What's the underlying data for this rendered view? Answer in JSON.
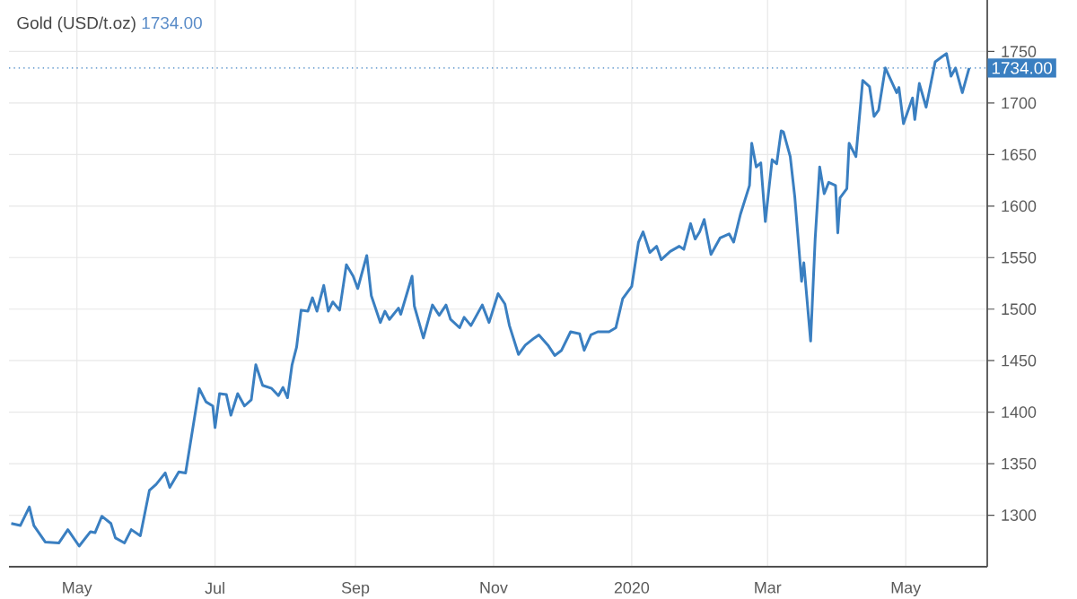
{
  "chart_data": {
    "type": "line",
    "title": "Gold (USD/t.oz)",
    "subtitle": "1734.00",
    "x": [
      "2019-04-02",
      "2019-04-06",
      "2019-04-10",
      "2019-04-12",
      "2019-04-17",
      "2019-04-23",
      "2019-04-27",
      "2019-05-02",
      "2019-05-07",
      "2019-05-09",
      "2019-05-12",
      "2019-05-16",
      "2019-05-18",
      "2019-05-22",
      "2019-05-25",
      "2019-05-29",
      "2019-06-02",
      "2019-06-05",
      "2019-06-09",
      "2019-06-11",
      "2019-06-15",
      "2019-06-18",
      "2019-06-21",
      "2019-06-24",
      "2019-06-27",
      "2019-06-30",
      "2019-07-01",
      "2019-07-03",
      "2019-07-06",
      "2019-07-08",
      "2019-07-11",
      "2019-07-14",
      "2019-07-17",
      "2019-07-19",
      "2019-07-22",
      "2019-07-26",
      "2019-07-29",
      "2019-07-31",
      "2019-08-02",
      "2019-08-04",
      "2019-08-06",
      "2019-08-08",
      "2019-08-11",
      "2019-08-13",
      "2019-08-15",
      "2019-08-18",
      "2019-08-20",
      "2019-08-22",
      "2019-08-25",
      "2019-08-28",
      "2019-08-31",
      "2019-09-02",
      "2019-09-06",
      "2019-09-08",
      "2019-09-12",
      "2019-09-14",
      "2019-09-16",
      "2019-09-20",
      "2019-09-21",
      "2019-09-26",
      "2019-09-27",
      "2019-10-01",
      "2019-10-05",
      "2019-10-08",
      "2019-10-11",
      "2019-10-13",
      "2019-10-17",
      "2019-10-19",
      "2019-10-22",
      "2019-10-27",
      "2019-10-30",
      "2019-11-03",
      "2019-11-06",
      "2019-11-08",
      "2019-11-12",
      "2019-11-15",
      "2019-11-19",
      "2019-11-21",
      "2019-11-25",
      "2019-11-28",
      "2019-12-01",
      "2019-12-05",
      "2019-12-09",
      "2019-12-11",
      "2019-12-14",
      "2019-12-17",
      "2019-12-22",
      "2019-12-25",
      "2019-12-28",
      "2020-01-01",
      "2020-01-04",
      "2020-01-06",
      "2020-01-09",
      "2020-01-12",
      "2020-01-14",
      "2020-01-18",
      "2020-01-22",
      "2020-01-24",
      "2020-01-27",
      "2020-01-29",
      "2020-01-31",
      "2020-02-02",
      "2020-02-05",
      "2020-02-09",
      "2020-02-13",
      "2020-02-15",
      "2020-02-18",
      "2020-02-22",
      "2020-02-23",
      "2020-02-25",
      "2020-02-27",
      "2020-02-29",
      "2020-03-03",
      "2020-03-05",
      "2020-03-07",
      "2020-03-08",
      "2020-03-11",
      "2020-03-13",
      "2020-03-16",
      "2020-03-17",
      "2020-03-20",
      "2020-03-22",
      "2020-03-24",
      "2020-03-26",
      "2020-03-28",
      "2020-03-31",
      "2020-04-01",
      "2020-04-02",
      "2020-04-05",
      "2020-04-06",
      "2020-04-09",
      "2020-04-12",
      "2020-04-15",
      "2020-04-17",
      "2020-04-19",
      "2020-04-22",
      "2020-04-27",
      "2020-04-28",
      "2020-04-30",
      "2020-05-04",
      "2020-05-05",
      "2020-05-07",
      "2020-05-10",
      "2020-05-14",
      "2020-05-17",
      "2020-05-19",
      "2020-05-21",
      "2020-05-23",
      "2020-05-26",
      "2020-05-29"
    ],
    "series": [
      {
        "color": "#3a7fc1",
        "values": [
          1292,
          1290,
          1308,
          1290,
          1274,
          1273,
          1286,
          1270,
          1284,
          1283,
          1299,
          1292,
          1278,
          1273,
          1286,
          1280,
          1324,
          1330,
          1341,
          1327,
          1342,
          1341,
          1382,
          1423,
          1410,
          1406,
          1385,
          1418,
          1417,
          1397,
          1418,
          1406,
          1412,
          1446,
          1426,
          1423,
          1416,
          1424,
          1414,
          1446,
          1463,
          1499,
          1498,
          1511,
          1498,
          1523,
          1498,
          1507,
          1499,
          1543,
          1532,
          1520,
          1552,
          1513,
          1487,
          1498,
          1490,
          1501,
          1495,
          1532,
          1503,
          1472,
          1504,
          1494,
          1504,
          1490,
          1482,
          1492,
          1484,
          1504,
          1487,
          1515,
          1505,
          1484,
          1456,
          1465,
          1472,
          1475,
          1465,
          1455,
          1460,
          1478,
          1476,
          1460,
          1475,
          1478,
          1478,
          1482,
          1510,
          1522,
          1565,
          1575,
          1555,
          1561,
          1548,
          1556,
          1561,
          1558,
          1583,
          1568,
          1575,
          1587,
          1553,
          1569,
          1573,
          1565,
          1592,
          1620,
          1661,
          1638,
          1642,
          1585,
          1645,
          1641,
          1673,
          1672,
          1648,
          1609,
          1527,
          1545,
          1469,
          1568,
          1638,
          1612,
          1623,
          1620,
          1574,
          1608,
          1617,
          1661,
          1648,
          1722,
          1716,
          1687,
          1693,
          1734,
          1710,
          1715,
          1680,
          1705,
          1684,
          1719,
          1696,
          1740,
          1745,
          1748,
          1726,
          1734,
          1710,
          1734
        ]
      }
    ],
    "xlim": [
      "2019-04-01",
      "2020-06-06"
    ],
    "xticks": [
      {
        "value": "2019-05-01",
        "label": "May"
      },
      {
        "value": "2019-07-01",
        "label": "Jul"
      },
      {
        "value": "2019-09-01",
        "label": "Sep"
      },
      {
        "value": "2019-11-01",
        "label": "Nov"
      },
      {
        "value": "2020-01-01",
        "label": "2020"
      },
      {
        "value": "2020-03-01",
        "label": "Mar"
      },
      {
        "value": "2020-05-01",
        "label": "May"
      }
    ],
    "ylim": [
      1250,
      1800
    ],
    "yticks": [
      1300,
      1350,
      1400,
      1450,
      1500,
      1550,
      1600,
      1650,
      1700,
      1750
    ],
    "ref_lines": [
      {
        "axis": "y",
        "value": 1734,
        "label": "1734.00",
        "color": "#3a7fc1",
        "line_style": "dotted"
      }
    ],
    "grid": true,
    "marker": "none",
    "line_style": "solid"
  }
}
